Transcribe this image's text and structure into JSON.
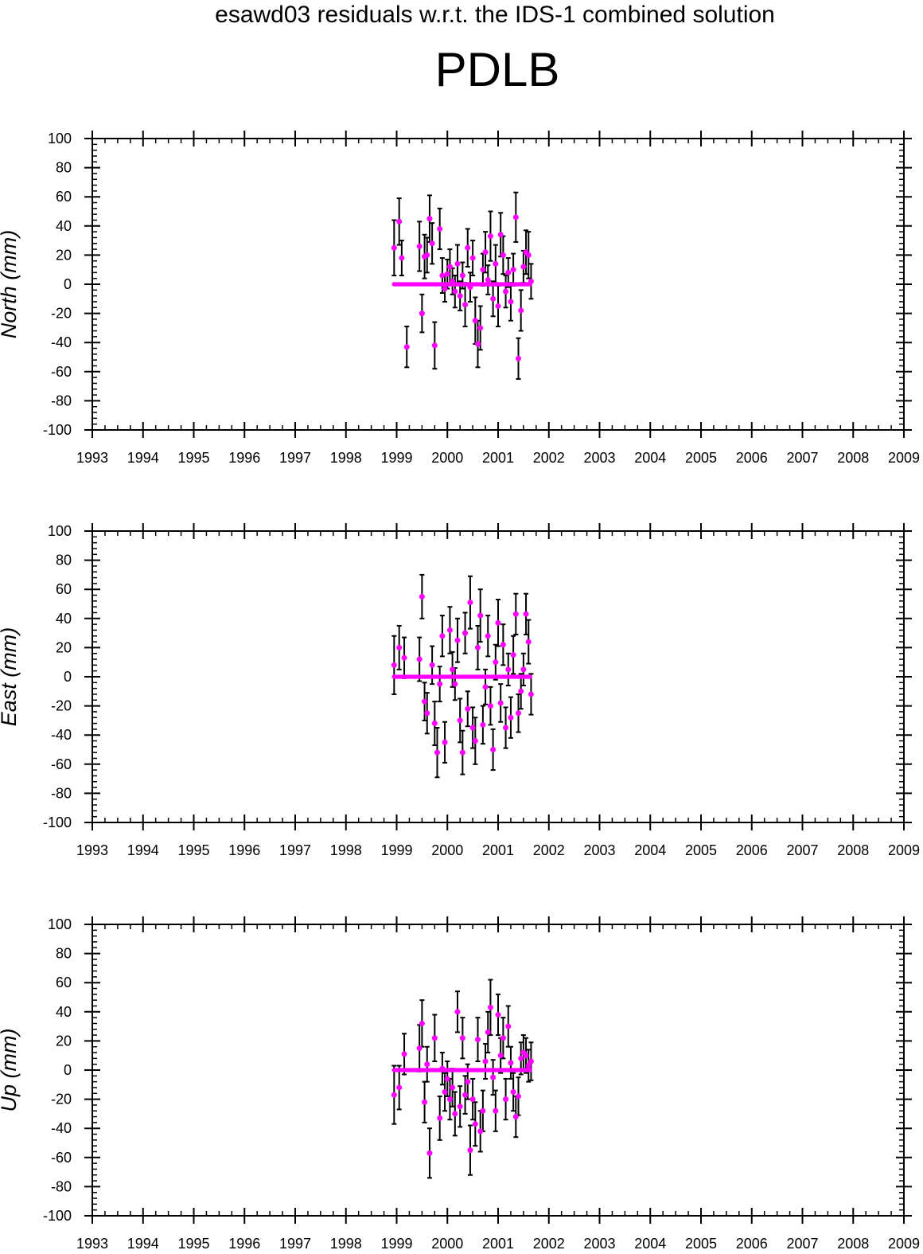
{
  "figure": {
    "title": "esawd03 residuals w.r.t. the IDS-1 combined solution",
    "station": "PDLB"
  },
  "colors": {
    "points": "#ff00ff",
    "error_bars": "#000000",
    "axes": "#000000"
  },
  "chart_data": [
    {
      "type": "scatter",
      "name": "north-panel",
      "ylabel": "North (mm)",
      "xlim": [
        1993,
        2009
      ],
      "ylim": [
        -100,
        100
      ],
      "x_ticks": [
        "1993",
        "1994",
        "1995",
        "1996",
        "1997",
        "1998",
        "1999",
        "2000",
        "2001",
        "2002",
        "2003",
        "2004",
        "2005",
        "2006",
        "2007",
        "2008",
        "2009"
      ],
      "y_ticks": [
        "100",
        "80",
        "60",
        "40",
        "20",
        "0",
        "-20",
        "-40",
        "-60",
        "-80",
        "-100"
      ],
      "grid": false,
      "points": [
        [
          1998.95,
          25,
          19
        ],
        [
          1999.05,
          43,
          16
        ],
        [
          1999.1,
          18,
          12
        ],
        [
          1999.2,
          -43,
          14
        ],
        [
          1999.45,
          26,
          17
        ],
        [
          1999.5,
          -20,
          13
        ],
        [
          1999.55,
          19,
          15
        ],
        [
          1999.6,
          20,
          12
        ],
        [
          1999.65,
          45,
          16
        ],
        [
          1999.7,
          28,
          14
        ],
        [
          1999.75,
          -42,
          16
        ],
        [
          1999.85,
          38,
          14
        ],
        [
          1999.9,
          6,
          12
        ],
        [
          1999.95,
          -3,
          9
        ],
        [
          2000.0,
          7,
          10
        ],
        [
          2000.05,
          12,
          12
        ],
        [
          2000.1,
          2,
          9
        ],
        [
          2000.15,
          -5,
          11
        ],
        [
          2000.2,
          14,
          13
        ],
        [
          2000.25,
          -8,
          10
        ],
        [
          2000.3,
          6,
          9
        ],
        [
          2000.35,
          -14,
          15
        ],
        [
          2000.4,
          25,
          13
        ],
        [
          2000.45,
          -2,
          10
        ],
        [
          2000.5,
          18,
          12
        ],
        [
          2000.55,
          -25,
          16
        ],
        [
          2000.6,
          -41,
          16
        ],
        [
          2000.65,
          -30,
          15
        ],
        [
          2000.7,
          10,
          11
        ],
        [
          2000.75,
          22,
          14
        ],
        [
          2000.8,
          3,
          10
        ],
        [
          2000.85,
          33,
          17
        ],
        [
          2000.9,
          -10,
          12
        ],
        [
          2000.95,
          14,
          13
        ],
        [
          2001.0,
          -15,
          14
        ],
        [
          2001.05,
          34,
          15
        ],
        [
          2001.1,
          20,
          13
        ],
        [
          2001.15,
          -5,
          11
        ],
        [
          2001.2,
          8,
          10
        ],
        [
          2001.25,
          -12,
          13
        ],
        [
          2001.3,
          10,
          11
        ],
        [
          2001.35,
          46,
          17
        ],
        [
          2001.4,
          -51,
          14
        ],
        [
          2001.45,
          -18,
          14
        ],
        [
          2001.5,
          12,
          11
        ],
        [
          2001.55,
          22,
          15
        ],
        [
          2001.6,
          20,
          16
        ],
        [
          2001.65,
          2,
          12
        ]
      ]
    },
    {
      "type": "scatter",
      "name": "east-panel",
      "ylabel": "East (mm)",
      "xlim": [
        1993,
        2009
      ],
      "ylim": [
        -100,
        100
      ],
      "x_ticks": [
        "1993",
        "1994",
        "1995",
        "1996",
        "1997",
        "1998",
        "1999",
        "2000",
        "2001",
        "2002",
        "2003",
        "2004",
        "2005",
        "2006",
        "2007",
        "2008",
        "2009"
      ],
      "y_ticks": [
        "100",
        "80",
        "60",
        "40",
        "20",
        "0",
        "-20",
        "-40",
        "-60",
        "-80",
        "-100"
      ],
      "grid": false,
      "points": [
        [
          1998.95,
          8,
          20
        ],
        [
          1999.05,
          20,
          15
        ],
        [
          1999.15,
          13,
          14
        ],
        [
          1999.45,
          12,
          15
        ],
        [
          1999.5,
          55,
          15
        ],
        [
          1999.55,
          -17,
          13
        ],
        [
          1999.6,
          -25,
          14
        ],
        [
          1999.7,
          8,
          13
        ],
        [
          1999.75,
          -32,
          15
        ],
        [
          1999.8,
          -52,
          17
        ],
        [
          1999.85,
          -5,
          12
        ],
        [
          1999.9,
          28,
          14
        ],
        [
          1999.95,
          -45,
          14
        ],
        [
          2000.05,
          32,
          16
        ],
        [
          2000.1,
          5,
          12
        ],
        [
          2000.15,
          -5,
          11
        ],
        [
          2000.2,
          25,
          15
        ],
        [
          2000.25,
          -30,
          15
        ],
        [
          2000.3,
          -52,
          15
        ],
        [
          2000.35,
          30,
          14
        ],
        [
          2000.4,
          -22,
          12
        ],
        [
          2000.45,
          51,
          18
        ],
        [
          2000.5,
          -35,
          14
        ],
        [
          2000.55,
          -44,
          16
        ],
        [
          2000.6,
          20,
          15
        ],
        [
          2000.65,
          42,
          18
        ],
        [
          2000.7,
          -33,
          13
        ],
        [
          2000.75,
          -7,
          12
        ],
        [
          2000.8,
          28,
          14
        ],
        [
          2000.85,
          -20,
          13
        ],
        [
          2000.9,
          -50,
          14
        ],
        [
          2000.95,
          10,
          12
        ],
        [
          2001.0,
          37,
          16
        ],
        [
          2001.05,
          -18,
          13
        ],
        [
          2001.1,
          22,
          14
        ],
        [
          2001.15,
          -35,
          14
        ],
        [
          2001.2,
          5,
          11
        ],
        [
          2001.25,
          -28,
          14
        ],
        [
          2001.3,
          15,
          13
        ],
        [
          2001.35,
          43,
          14
        ],
        [
          2001.4,
          -25,
          13
        ],
        [
          2001.45,
          -10,
          12
        ],
        [
          2001.5,
          5,
          11
        ],
        [
          2001.55,
          43,
          14
        ],
        [
          2001.6,
          24,
          15
        ],
        [
          2001.65,
          -12,
          14
        ]
      ]
    },
    {
      "type": "scatter",
      "name": "up-panel",
      "ylabel": "Up (mm)",
      "xlim": [
        1993,
        2009
      ],
      "ylim": [
        -100,
        100
      ],
      "x_ticks": [
        "1993",
        "1994",
        "1995",
        "1996",
        "1997",
        "1998",
        "1999",
        "2000",
        "2001",
        "2002",
        "2003",
        "2004",
        "2005",
        "2006",
        "2007",
        "2008",
        "2009"
      ],
      "y_ticks": [
        "100",
        "80",
        "60",
        "40",
        "20",
        "0",
        "-20",
        "-40",
        "-60",
        "-80",
        "-100"
      ],
      "grid": false,
      "points": [
        [
          1998.95,
          -17,
          20
        ],
        [
          1999.05,
          -12,
          15
        ],
        [
          1999.15,
          11,
          14
        ],
        [
          1999.45,
          15,
          16
        ],
        [
          1999.5,
          32,
          16
        ],
        [
          1999.55,
          -22,
          14
        ],
        [
          1999.6,
          4,
          12
        ],
        [
          1999.65,
          -57,
          17
        ],
        [
          1999.75,
          22,
          16
        ],
        [
          1999.85,
          -33,
          15
        ],
        [
          1999.9,
          1,
          11
        ],
        [
          1999.95,
          -15,
          13
        ],
        [
          2000.0,
          -6,
          12
        ],
        [
          2000.05,
          -20,
          14
        ],
        [
          2000.1,
          -12,
          13
        ],
        [
          2000.15,
          -30,
          15
        ],
        [
          2000.2,
          40,
          14
        ],
        [
          2000.25,
          -25,
          14
        ],
        [
          2000.3,
          22,
          14
        ],
        [
          2000.35,
          -17,
          13
        ],
        [
          2000.4,
          -8,
          12
        ],
        [
          2000.45,
          -55,
          17
        ],
        [
          2000.5,
          -20,
          14
        ],
        [
          2000.55,
          -37,
          15
        ],
        [
          2000.6,
          21,
          15
        ],
        [
          2000.65,
          -42,
          14
        ],
        [
          2000.7,
          -28,
          14
        ],
        [
          2000.75,
          6,
          12
        ],
        [
          2000.8,
          26,
          14
        ],
        [
          2000.85,
          43,
          19
        ],
        [
          2000.9,
          -5,
          12
        ],
        [
          2000.95,
          -28,
          14
        ],
        [
          2001.0,
          38,
          14
        ],
        [
          2001.05,
          10,
          12
        ],
        [
          2001.1,
          22,
          14
        ],
        [
          2001.15,
          -20,
          14
        ],
        [
          2001.2,
          30,
          14
        ],
        [
          2001.25,
          5,
          11
        ],
        [
          2001.3,
          -15,
          13
        ],
        [
          2001.35,
          -32,
          14
        ],
        [
          2001.4,
          -18,
          13
        ],
        [
          2001.45,
          8,
          11
        ],
        [
          2001.5,
          12,
          12
        ],
        [
          2001.55,
          10,
          12
        ],
        [
          2001.6,
          3,
          11
        ],
        [
          2001.65,
          6,
          13
        ]
      ]
    }
  ]
}
